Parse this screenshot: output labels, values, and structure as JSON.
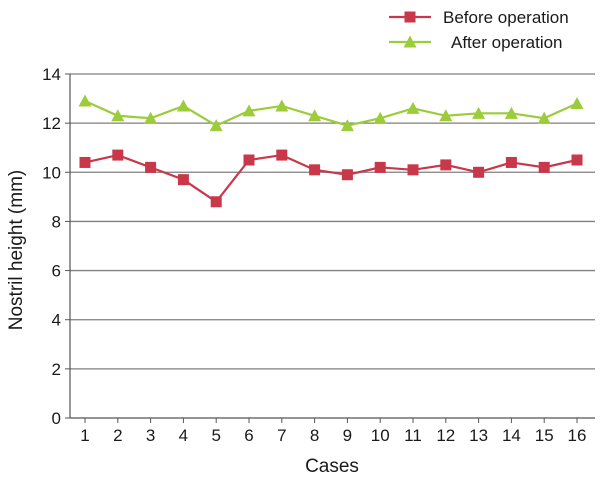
{
  "chart_data": {
    "type": "line",
    "xlabel": "Cases",
    "ylabel": "Nostril height (mm)",
    "categories": [
      "1",
      "2",
      "3",
      "4",
      "5",
      "6",
      "7",
      "8",
      "9",
      "10",
      "11",
      "12",
      "13",
      "14",
      "15",
      "16"
    ],
    "ylim": [
      0,
      14
    ],
    "yticks": [
      "0",
      "2",
      "4",
      "6",
      "8",
      "10",
      "12",
      "14"
    ],
    "grid": "horizontal",
    "legend_position": "top-right",
    "series": [
      {
        "name": "Before operation",
        "marker": "square",
        "color": "#c8374a",
        "values": [
          10.4,
          10.7,
          10.2,
          9.7,
          8.8,
          10.5,
          10.7,
          10.1,
          9.9,
          10.2,
          10.1,
          10.3,
          10.0,
          10.4,
          10.2,
          10.5
        ]
      },
      {
        "name": "After operation",
        "marker": "triangle",
        "color": "#9ccc3a",
        "values": [
          12.9,
          12.3,
          12.2,
          12.7,
          11.9,
          12.5,
          12.7,
          12.3,
          11.9,
          12.2,
          12.6,
          12.3,
          12.4,
          12.4,
          12.2,
          12.8
        ]
      }
    ]
  }
}
